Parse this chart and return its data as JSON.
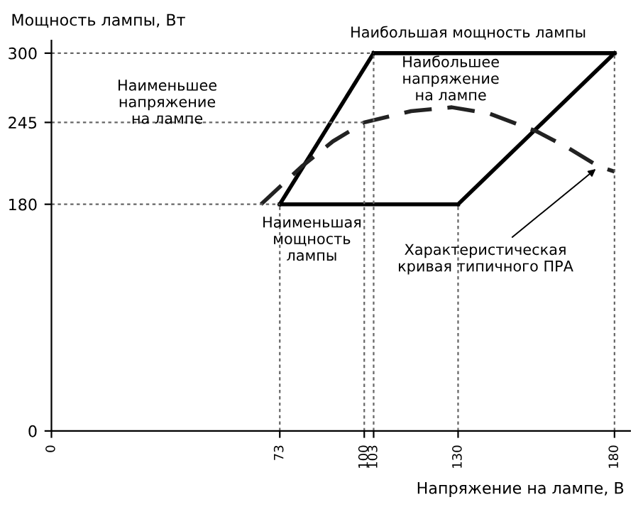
{
  "chart_data": {
    "type": "line",
    "xlabel": "Напряжение на лампе, В",
    "ylabel": "Мощность лампы, Вт",
    "series": [
      {
        "color": "#000000",
        "line_style": "solid",
        "x": [
          73,
          103
        ],
        "values": [
          180,
          300
        ]
      },
      {
        "color": "#000000",
        "line_style": "solid",
        "x": [
          103,
          180
        ],
        "values": [
          300,
          300
        ]
      },
      {
        "color": "#000000",
        "line_style": "solid",
        "x": [
          130,
          180
        ],
        "values": [
          180,
          300
        ]
      },
      {
        "color": "#000000",
        "line_style": "solid",
        "x": [
          73,
          130
        ],
        "values": [
          180,
          180
        ]
      },
      {
        "color": "#222222",
        "line_style": "dashed",
        "x": [
          67,
          80,
          90,
          100,
          115,
          128,
          140,
          155,
          165,
          175,
          180
        ],
        "values": [
          180,
          210,
          230,
          245,
          254,
          257,
          252,
          238,
          225,
          210,
          206
        ]
      },
      {
        "color": "#666666",
        "line_style": "dotted",
        "x": [
          0,
          100,
          100
        ],
        "values": [
          245,
          245,
          0
        ]
      },
      {
        "color": "#666666",
        "line_style": "dotted",
        "x": [
          0,
          103
        ],
        "values": [
          300,
          300
        ]
      },
      {
        "color": "#666666",
        "line_style": "dotted",
        "x": [
          0,
          73
        ],
        "values": [
          180,
          180
        ]
      },
      {
        "color": "#666666",
        "line_style": "dotted",
        "x": [
          73,
          73
        ],
        "values": [
          0,
          180
        ]
      },
      {
        "color": "#666666",
        "line_style": "dotted",
        "x": [
          103,
          103
        ],
        "values": [
          0,
          300
        ]
      },
      {
        "color": "#666666",
        "line_style": "dotted",
        "x": [
          130,
          130
        ],
        "values": [
          0,
          180
        ]
      },
      {
        "color": "#666666",
        "line_style": "dotted",
        "x": [
          180,
          180
        ],
        "values": [
          0,
          300
        ]
      }
    ],
    "annotations": [
      "Наибольшая мощность лампы",
      "Наименьшее\nнапряжение\nна лампе",
      "Наибольшее\nнапряжение\nна лампе",
      "Наименьшая\nмощность\nлампы",
      {
        "text": "Характеристическая\nкривая типичного ПРА",
        "x": 175,
        "y": 210
      }
    ],
    "xlim": [
      0,
      185
    ],
    "ylim": [
      0,
      310
    ],
    "xticks": [
      0,
      73,
      100,
      103,
      130,
      180
    ],
    "yticks": [
      0,
      180,
      245,
      300
    ],
    "grid": false,
    "legend": false,
    "marker": "none"
  }
}
